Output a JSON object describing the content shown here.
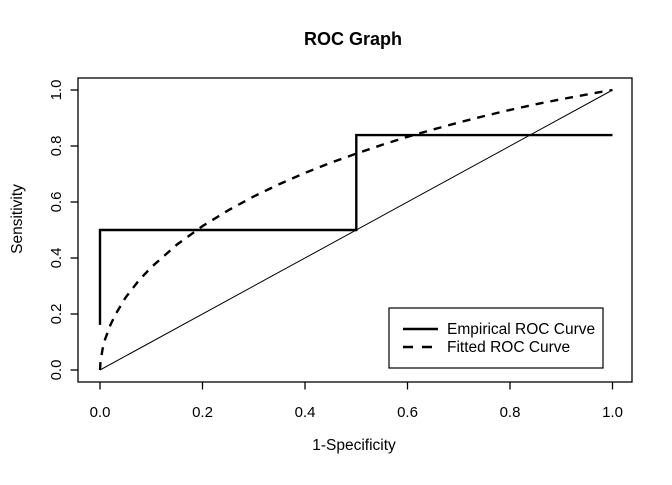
{
  "figure": {
    "background": "#ffffff",
    "ink_color": "#000000"
  },
  "chart_data": {
    "type": "line",
    "title": "ROC Graph",
    "xlabel": "1-Specificity",
    "ylabel": "Sensitivity",
    "xlim": [
      0,
      1
    ],
    "ylim": [
      0,
      1
    ],
    "grid": false,
    "x_ticks": [
      {
        "label": "0.0",
        "value": 0.0
      },
      {
        "label": "0.2",
        "value": 0.2
      },
      {
        "label": "0.4",
        "value": 0.4
      },
      {
        "label": "0.6",
        "value": 0.6
      },
      {
        "label": "0.8",
        "value": 0.8
      },
      {
        "label": "1.0",
        "value": 1.0
      }
    ],
    "y_ticks": [
      {
        "label": "0.0",
        "value": 0.0
      },
      {
        "label": "0.2",
        "value": 0.2
      },
      {
        "label": "0.4",
        "value": 0.4
      },
      {
        "label": "0.6",
        "value": 0.6
      },
      {
        "label": "0.8",
        "value": 0.8
      },
      {
        "label": "1.0",
        "value": 1.0
      }
    ],
    "legend": {
      "position": "bottom-right",
      "entries": [
        {
          "label": "Empirical ROC Curve",
          "line_style": "solid"
        },
        {
          "label": "Fitted ROC Curve",
          "line_style": "dashed"
        }
      ]
    },
    "series": [
      {
        "id": "empirical",
        "name": "Empirical ROC Curve",
        "style": "solid",
        "color": "#000000",
        "width": 2.4,
        "points": [
          [
            0,
            0.161
          ],
          [
            0,
            0.5
          ],
          [
            0.5,
            0.5
          ],
          [
            0.5,
            0.839
          ],
          [
            1,
            0.839
          ]
        ]
      },
      {
        "id": "fitted",
        "name": "Fitted ROC Curve",
        "style": "dashed",
        "color": "#000000",
        "width": 2.4,
        "points": [
          [
            0,
            0
          ],
          [
            0.001,
            0.03
          ],
          [
            0.005,
            0.075
          ],
          [
            0.01,
            0.11
          ],
          [
            0.02,
            0.16
          ],
          [
            0.03,
            0.198
          ],
          [
            0.05,
            0.259
          ],
          [
            0.075,
            0.318
          ],
          [
            0.1,
            0.367
          ],
          [
            0.15,
            0.448
          ],
          [
            0.2,
            0.514
          ],
          [
            0.25,
            0.57
          ],
          [
            0.3,
            0.62
          ],
          [
            0.35,
            0.664
          ],
          [
            0.4,
            0.704
          ],
          [
            0.45,
            0.74
          ],
          [
            0.5,
            0.773
          ],
          [
            0.55,
            0.804
          ],
          [
            0.6,
            0.833
          ],
          [
            0.65,
            0.859
          ],
          [
            0.7,
            0.884
          ],
          [
            0.75,
            0.907
          ],
          [
            0.8,
            0.929
          ],
          [
            0.85,
            0.949
          ],
          [
            0.9,
            0.967
          ],
          [
            0.95,
            0.984
          ],
          [
            0.98,
            0.994
          ],
          [
            1,
            1
          ]
        ]
      },
      {
        "id": "chance",
        "name": "Chance diagonal",
        "style": "thin-solid",
        "color": "#000000",
        "width": 1,
        "points": [
          [
            0,
            0
          ],
          [
            1,
            1
          ]
        ]
      }
    ]
  }
}
